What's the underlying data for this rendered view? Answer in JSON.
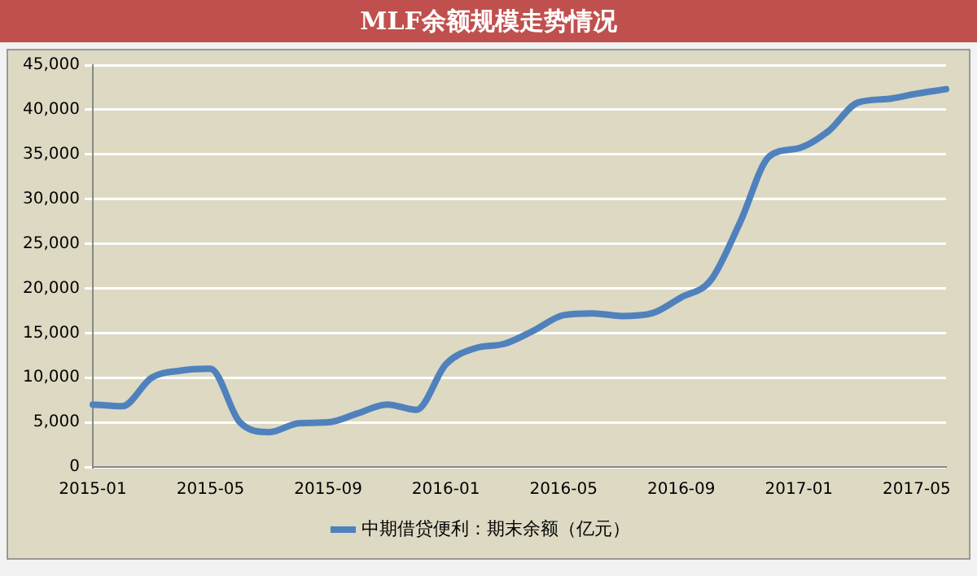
{
  "chart_data": {
    "type": "line",
    "title": "MLF余额规模走势情况",
    "categories": [
      "2015-01",
      null,
      null,
      null,
      "2015-05",
      null,
      null,
      null,
      "2015-09",
      null,
      null,
      null,
      "2016-01",
      null,
      null,
      null,
      "2016-05",
      null,
      null,
      null,
      "2016-09",
      null,
      null,
      null,
      "2017-01",
      null,
      null,
      null,
      "2017-05",
      null
    ],
    "series": [
      {
        "name": "中期借贷便利：期末余额（亿元）",
        "color": "#4f81bd",
        "values": [
          7000,
          6800,
          10000,
          10800,
          11000,
          5000,
          3900,
          4900,
          5000,
          6000,
          7000,
          6400,
          11500,
          13300,
          13800,
          15300,
          17000,
          17200,
          16900,
          17200,
          19000,
          20900,
          27400,
          34800,
          35700,
          37600,
          40800,
          41200,
          41800,
          42300
        ]
      }
    ],
    "ylim": [
      0,
      45000
    ],
    "yticks": [
      0,
      {
        "value": 5000,
        "label": "5,000"
      },
      {
        "value": 10000,
        "label": "10,000"
      },
      {
        "value": 15000,
        "label": "15,000"
      },
      {
        "value": 20000,
        "label": "20,000"
      },
      {
        "value": 25000,
        "label": "25,000"
      },
      {
        "value": 30000,
        "label": "30,000"
      },
      {
        "value": 35000,
        "label": "35,000"
      },
      {
        "value": 40000,
        "label": "40,000"
      },
      {
        "value": 45000,
        "label": "45,000"
      }
    ],
    "grid": "y",
    "legend": "bottom",
    "marker": "none",
    "line_style": "solid"
  }
}
